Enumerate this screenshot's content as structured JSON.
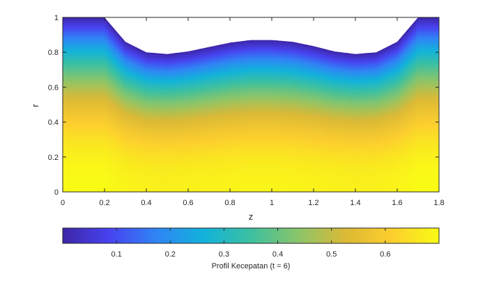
{
  "chart_data": {
    "type": "heatmap",
    "title": "",
    "xlabel": "z",
    "ylabel": "r",
    "xlim": [
      0,
      1.8
    ],
    "ylim": [
      0,
      1
    ],
    "x_ticks": [
      "0",
      "0.2",
      "0.4",
      "0.6",
      "0.8",
      "1",
      "1.2",
      "1.4",
      "1.6",
      "1.8"
    ],
    "y_ticks": [
      "0",
      "0.2",
      "0.4",
      "0.6",
      "0.8",
      "1"
    ],
    "boundary": {
      "z": [
        0,
        0.2,
        0.3,
        0.4,
        0.5,
        0.6,
        0.7,
        0.8,
        0.9,
        1.0,
        1.1,
        1.2,
        1.3,
        1.4,
        1.5,
        1.6,
        1.7,
        1.8
      ],
      "r_max": [
        1.0,
        1.0,
        0.86,
        0.8,
        0.79,
        0.805,
        0.83,
        0.855,
        0.87,
        0.87,
        0.86,
        0.835,
        0.805,
        0.79,
        0.8,
        0.86,
        1.0,
        1.0
      ]
    },
    "colorbar": {
      "label": "Profil Kecepatan (t = 6)",
      "range": [
        0.0,
        0.7
      ],
      "ticks": [
        "0.1",
        "0.2",
        "0.3",
        "0.4",
        "0.5",
        "0.6"
      ],
      "colormap": "parula"
    },
    "velocity_range": [
      0.0,
      0.7
    ],
    "colors": {
      "parula": [
        "#3e26a8",
        "#4743f0",
        "#2f85f5",
        "#12b2da",
        "#3cc0a0",
        "#8ac56a",
        "#dbb936",
        "#fcce2e",
        "#f9fb15"
      ]
    }
  }
}
